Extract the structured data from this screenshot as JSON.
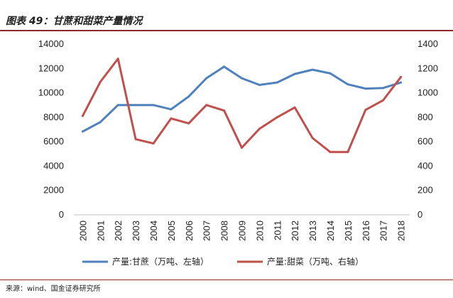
{
  "page_title": "图表 49：甘蔗和甜菜产量情况",
  "source": "来源：wind、国金证券研究所",
  "chart_data": {
    "type": "line",
    "title": "图表 49：甘蔗和甜菜产量情况",
    "categories": [
      "2000",
      "2001",
      "2002",
      "2003",
      "2004",
      "2005",
      "2006",
      "2007",
      "2008",
      "2009",
      "2010",
      "2011",
      "2012",
      "2013",
      "2014",
      "2015",
      "2016",
      "2017",
      "2018"
    ],
    "series": [
      {
        "name": "产量:甘蔗（万吨、左轴）",
        "axis": "left",
        "color": "#4f81bd",
        "values": [
          6830,
          7600,
          9000,
          9000,
          9000,
          8650,
          9700,
          11200,
          12150,
          11200,
          10650,
          10850,
          11550,
          11900,
          11600,
          10700,
          10350,
          10400,
          10850
        ]
      },
      {
        "name": "产量:甜菜（万吨、右轴）",
        "axis": "right",
        "color": "#c0504d",
        "values": [
          810,
          1090,
          1280,
          620,
          585,
          790,
          750,
          900,
          855,
          550,
          705,
          800,
          880,
          630,
          515,
          515,
          860,
          940,
          1130
        ]
      }
    ],
    "y_left": {
      "min": 0,
      "max": 14000,
      "ticks": [
        "0",
        "2000",
        "4000",
        "6000",
        "8000",
        "10000",
        "12000",
        "14000"
      ]
    },
    "y_right": {
      "min": 0,
      "max": 1400,
      "ticks": [
        "0",
        "200",
        "400",
        "600",
        "800",
        "1000",
        "1200",
        "1400"
      ]
    },
    "grid": false,
    "legend_position": "bottom"
  }
}
